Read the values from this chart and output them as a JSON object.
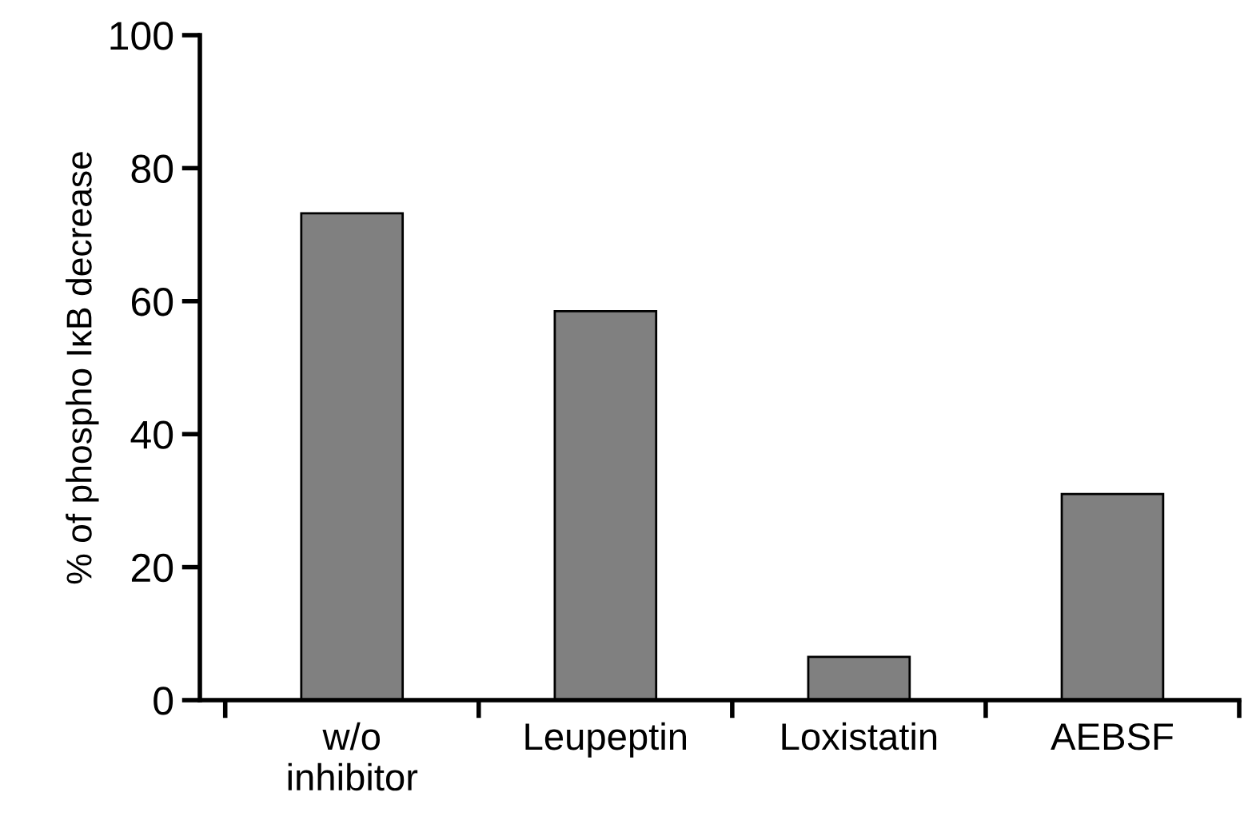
{
  "chart_data": {
    "type": "bar",
    "ylabel": "% of phospho IκB decrease",
    "categories": [
      "w/o\ninhibitor",
      "Leupeptin",
      "Loxistatin",
      "AEBSF"
    ],
    "values": [
      73.2,
      58.5,
      6.5,
      31
    ],
    "color": "#808080",
    "ylim": [
      0,
      100
    ],
    "yticks": [
      0,
      20,
      40,
      60,
      80,
      100
    ],
    "grid": false,
    "legend": false
  }
}
